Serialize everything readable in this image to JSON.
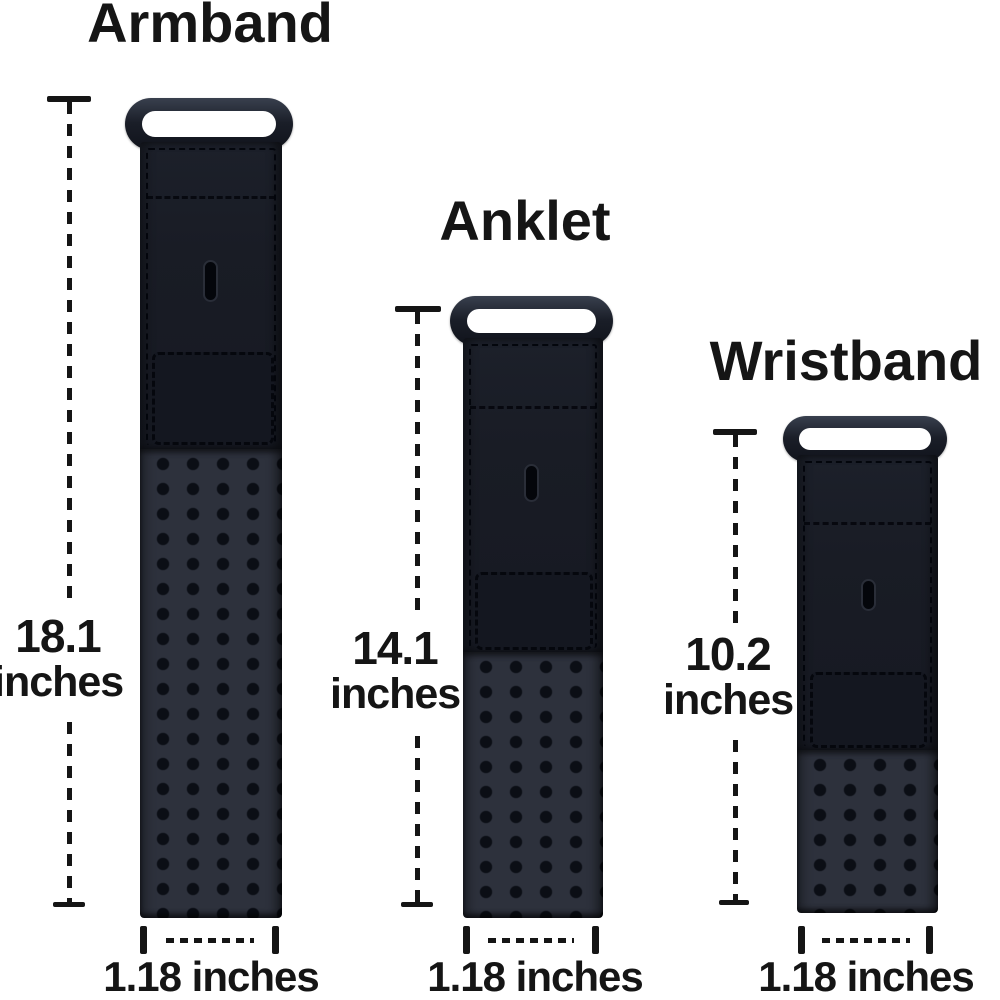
{
  "diagram": {
    "description": "Strap size comparison diagram",
    "products": [
      {
        "name": "Armband",
        "length": {
          "value": "18.1",
          "unit": "inches"
        },
        "width": {
          "label": "1.18 inches"
        }
      },
      {
        "name": "Anklet",
        "length": {
          "value": "14.1",
          "unit": "inches"
        },
        "width": {
          "label": "1.18 inches"
        }
      },
      {
        "name": "Wristband",
        "length": {
          "value": "10.2",
          "unit": "inches"
        },
        "width": {
          "label": "1.18 inches"
        }
      }
    ],
    "colors": {
      "background": "#ffffff",
      "text": "#151515",
      "line": "#151515",
      "strap_solid": "#191c25",
      "strap_perforated": "#2d313c",
      "hole": "#0b0e15",
      "buckle_dark": "#10131b",
      "buckle_light": "#39404e"
    }
  }
}
